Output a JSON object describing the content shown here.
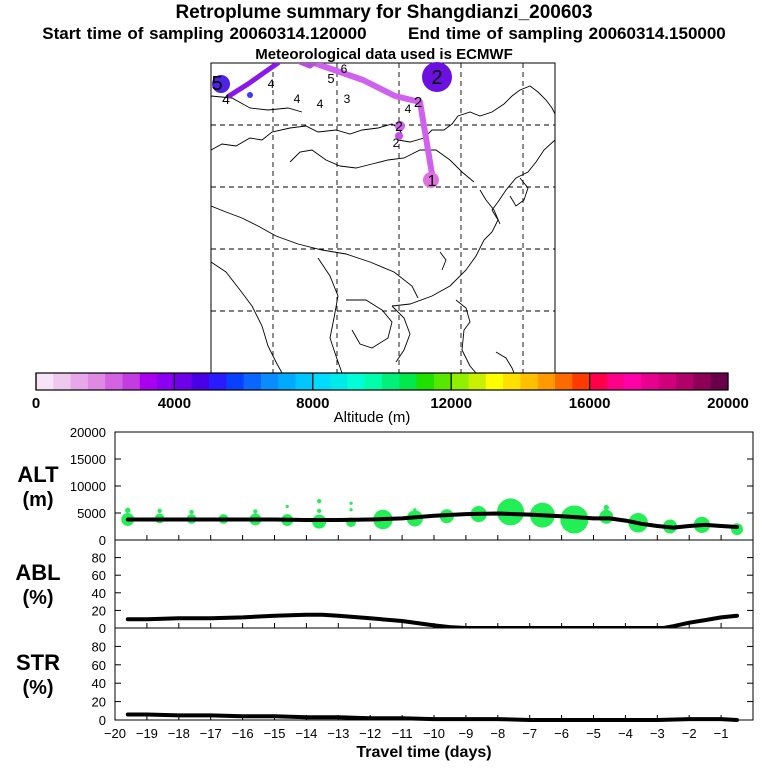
{
  "header": {
    "title": "Retroplume summary for Shangdianzi_200603",
    "start_time": "Start time of sampling 20060314.120000",
    "end_time": "End time of sampling 20060314.150000",
    "met_data": "Meteorological data used is ECMWF"
  },
  "colorbar": {
    "label": "Altitude (m)",
    "tick_labels": [
      "0",
      "4000",
      "8000",
      "12000",
      "16000",
      "20000"
    ],
    "min": 0,
    "max": 20000,
    "colors": [
      "#f7e4f7",
      "#efc8ef",
      "#e6a8ea",
      "#df88e4",
      "#d363e0",
      "#c33ce0",
      "#aa00f0",
      "#8a00f0",
      "#6e00ea",
      "#4a00e6",
      "#2a1aff",
      "#0840ff",
      "#0a66ff",
      "#0a8cff",
      "#00aaff",
      "#00c6ff",
      "#00dcff",
      "#00eaea",
      "#00ffd6",
      "#00ffaa",
      "#00f07a",
      "#00e84a",
      "#20e000",
      "#58e800",
      "#90f000",
      "#c8f000",
      "#ffff00",
      "#ffe000",
      "#ffc000",
      "#ff9a00",
      "#ff6a00",
      "#ff3a00",
      "#ff0048",
      "#ff0088",
      "#ff00a8",
      "#e8008e",
      "#d0007c",
      "#b0006a",
      "#8e0058",
      "#6a004a"
    ]
  },
  "map": {
    "markers": [
      {
        "label": "1"
      },
      {
        "label": "2"
      },
      {
        "label": "2"
      },
      {
        "label": "2"
      },
      {
        "label": "2"
      },
      {
        "label": "3"
      },
      {
        "label": "4"
      },
      {
        "label": "4"
      },
      {
        "label": "4"
      },
      {
        "label": "4"
      },
      {
        "label": "4"
      },
      {
        "label": "5"
      },
      {
        "label": "5"
      },
      {
        "label": "6"
      }
    ]
  },
  "chart_data": [
    {
      "type": "line",
      "panel": "ALT",
      "ylabel_line1": "ALT",
      "ylabel_line2": "(m)",
      "ylim": [
        0,
        20000
      ],
      "yticks": [
        0,
        5000,
        10000,
        15000,
        20000
      ],
      "ytick_labels": [
        "0",
        "5000",
        "10000",
        "15000",
        "20000"
      ],
      "xlim": [
        -20,
        0
      ],
      "series": [
        {
          "name": "mean altitude",
          "x": [
            -19.6,
            -19,
            -18,
            -17,
            -16,
            -15,
            -14,
            -13,
            -12,
            -11,
            -10,
            -9,
            -8,
            -7,
            -6,
            -5,
            -4.5,
            -4,
            -3.5,
            -3,
            -2.5,
            -2,
            -1.5,
            -1,
            -0.5
          ],
          "y": [
            3800,
            3800,
            3800,
            3800,
            3800,
            3800,
            3700,
            3700,
            3800,
            4000,
            4500,
            4800,
            4900,
            4700,
            4400,
            4000,
            4000,
            3600,
            3000,
            2600,
            2300,
            2600,
            2800,
            2600,
            2400
          ]
        }
      ],
      "plume_blobs": [
        {
          "x": -19.6,
          "y": 3800,
          "r": 1200
        },
        {
          "x": -19.6,
          "y": 5500,
          "r": 500
        },
        {
          "x": -18.6,
          "y": 4000,
          "r": 900
        },
        {
          "x": -18.6,
          "y": 5400,
          "r": 400
        },
        {
          "x": -17.6,
          "y": 3900,
          "r": 900
        },
        {
          "x": -17.6,
          "y": 5200,
          "r": 400
        },
        {
          "x": -16.6,
          "y": 3900,
          "r": 900
        },
        {
          "x": -15.6,
          "y": 3800,
          "r": 1100
        },
        {
          "x": -15.6,
          "y": 5300,
          "r": 400
        },
        {
          "x": -14.6,
          "y": 3700,
          "r": 1100
        },
        {
          "x": -14.6,
          "y": 6200,
          "r": 300
        },
        {
          "x": -13.6,
          "y": 3400,
          "r": 1300
        },
        {
          "x": -13.6,
          "y": 5400,
          "r": 400
        },
        {
          "x": -13.6,
          "y": 7200,
          "r": 400
        },
        {
          "x": -12.6,
          "y": 3300,
          "r": 900
        },
        {
          "x": -12.6,
          "y": 5600,
          "r": 300
        },
        {
          "x": -12.6,
          "y": 6800,
          "r": 300
        },
        {
          "x": -11.6,
          "y": 3800,
          "r": 1800
        },
        {
          "x": -10.6,
          "y": 4000,
          "r": 1500
        },
        {
          "x": -10.6,
          "y": 5600,
          "r": 300
        },
        {
          "x": -9.6,
          "y": 4400,
          "r": 1300
        },
        {
          "x": -8.6,
          "y": 4800,
          "r": 1500
        },
        {
          "x": -7.6,
          "y": 5200,
          "r": 2500
        },
        {
          "x": -6.6,
          "y": 4600,
          "r": 2300
        },
        {
          "x": -5.6,
          "y": 3800,
          "r": 2600
        },
        {
          "x": -4.6,
          "y": 4300,
          "r": 1300
        },
        {
          "x": -4.6,
          "y": 6000,
          "r": 500
        },
        {
          "x": -3.6,
          "y": 3200,
          "r": 1800
        },
        {
          "x": -2.6,
          "y": 2500,
          "r": 1300
        },
        {
          "x": -1.6,
          "y": 2800,
          "r": 1500
        },
        {
          "x": -0.5,
          "y": 2000,
          "r": 1100
        }
      ]
    },
    {
      "type": "line",
      "panel": "ABL",
      "ylabel_line1": "ABL",
      "ylabel_line2": "(%)",
      "ylim": [
        0,
        100
      ],
      "yticks": [
        0,
        20,
        40,
        60,
        80
      ],
      "ytick_labels": [
        "0",
        "20",
        "40",
        "60",
        "80"
      ],
      "xlim": [
        -20,
        0
      ],
      "series": [
        {
          "name": "ABL fraction",
          "x": [
            -19.6,
            -19,
            -18,
            -17,
            -16,
            -15,
            -14,
            -13.5,
            -13,
            -12,
            -11,
            -10,
            -9.5,
            -9,
            -8,
            -7,
            -6,
            -5,
            -4,
            -3,
            -2.8,
            -2.5,
            -2,
            -1.5,
            -1,
            -0.5
          ],
          "y": [
            10,
            10,
            11,
            11,
            12,
            14,
            15,
            15,
            14,
            11,
            8,
            3,
            1,
            0,
            0,
            0,
            0,
            0,
            0,
            0,
            0,
            2,
            6,
            9,
            12,
            14
          ]
        }
      ]
    },
    {
      "type": "line",
      "panel": "STR",
      "ylabel_line1": "STR",
      "ylabel_line2": "(%)",
      "ylim": [
        0,
        100
      ],
      "yticks": [
        0,
        20,
        40,
        60,
        80
      ],
      "ytick_labels": [
        "0",
        "20",
        "40",
        "60",
        "80"
      ],
      "xlim": [
        -20,
        0
      ],
      "xlabel": "Travel time (days)",
      "xticks": [
        -20,
        -19,
        -18,
        -17,
        -16,
        -15,
        -14,
        -13,
        -12,
        -11,
        -10,
        -9,
        -8,
        -7,
        -6,
        -5,
        -4,
        -3,
        -2,
        -1
      ],
      "xtick_labels": [
        "−20",
        "−19",
        "−18",
        "−17",
        "−16",
        "−15",
        "−14",
        "−13",
        "−12",
        "−11",
        "−10",
        "−9",
        "−8",
        "−7",
        "−6",
        "−5",
        "−4",
        "−3",
        "−2",
        "−1"
      ],
      "series": [
        {
          "name": "stratosphere fraction",
          "x": [
            -19.6,
            -19,
            -18,
            -17,
            -16,
            -15,
            -14,
            -13,
            -12,
            -11,
            -10,
            -9,
            -8,
            -7,
            -6,
            -5,
            -4,
            -3,
            -2,
            -1,
            -0.5
          ],
          "y": [
            6,
            6,
            5,
            5,
            4,
            4,
            3,
            3,
            2,
            2,
            1,
            1,
            1,
            0,
            0,
            0,
            0,
            0,
            1,
            1,
            0
          ]
        }
      ]
    }
  ]
}
